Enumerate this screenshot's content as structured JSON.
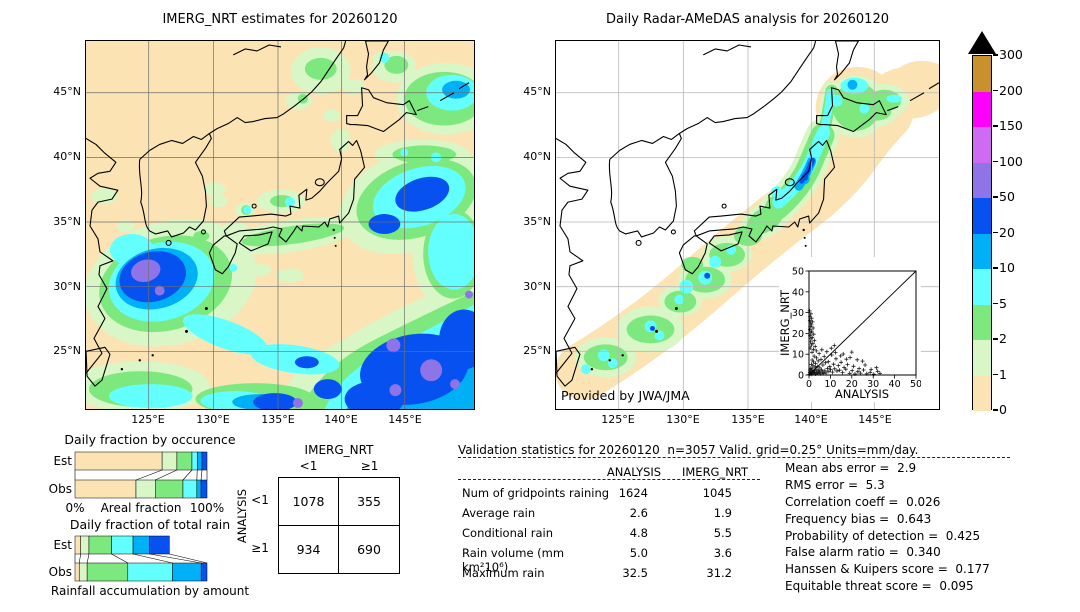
{
  "chart_data": {
    "type": "dashboard",
    "date": "20260120",
    "left_map": {
      "type": "map",
      "title": "IMERG_NRT estimates for 20260120",
      "x_ticks": [
        "125°E",
        "130°E",
        "135°E",
        "140°E",
        "145°E"
      ],
      "y_ticks": [
        "45°N",
        "40°N",
        "35°N",
        "30°N",
        "25°N"
      ],
      "lon_range": [
        120,
        150
      ],
      "lat_range": [
        20.5,
        49
      ]
    },
    "right_map": {
      "type": "map",
      "title": "Daily Radar-AMeDAS analysis for 20260120",
      "credit": "Provided by JWA/JMA",
      "x_ticks": [
        "125°E",
        "130°E",
        "135°E",
        "140°E",
        "145°E"
      ],
      "y_ticks": [
        "45°N",
        "40°N",
        "35°N",
        "30°N",
        "25°N"
      ],
      "lon_range": [
        120,
        150
      ],
      "lat_range": [
        20.5,
        49
      ]
    },
    "colorbar": {
      "units": "mm/day",
      "levels": [
        "0",
        "1",
        "2",
        "5",
        "10",
        "20",
        "50",
        "100",
        "150",
        "200",
        "300"
      ],
      "colors": [
        "#fbe3b4",
        "#d8f6c6",
        "#7de87d",
        "#63ffff",
        "#00b0f6",
        "#0751f0",
        "#8f74e8",
        "#cf6bf2",
        "#fb00fb",
        "#c8912d"
      ],
      "over_color": "#000000"
    },
    "occurrence_chart": {
      "type": "bar",
      "title": "Daily fraction by occurence",
      "rows": [
        "Est",
        "Obs"
      ],
      "x_left": "0%",
      "x_label": "Areal fraction",
      "x_right": "100%",
      "series": {
        "est": [
          [
            0,
            0.66
          ],
          [
            1,
            0.112
          ],
          [
            2,
            0.114
          ],
          [
            3,
            0.04
          ],
          [
            4,
            0.036
          ],
          [
            5,
            0.038
          ]
        ],
        "obs": [
          [
            0,
            0.462
          ],
          [
            1,
            0.146
          ],
          [
            2,
            0.21
          ],
          [
            3,
            0.105
          ],
          [
            4,
            0.032
          ],
          [
            5,
            0.045
          ]
        ]
      }
    },
    "totalrain_chart": {
      "type": "bar",
      "title": "Daily fraction of total rain",
      "rows": [
        "Est",
        "Obs"
      ],
      "x_label": "Rainfall accumulation by amount",
      "est_scale": 0.715,
      "obs_scale": 1.0,
      "series": {
        "est": [
          [
            0,
            0.06
          ],
          [
            1,
            0.088
          ],
          [
            2,
            0.239
          ],
          [
            3,
            0.228
          ],
          [
            4,
            0.175
          ],
          [
            5,
            0.21
          ]
        ],
        "obs": [
          [
            0,
            0.032
          ],
          [
            1,
            0.06
          ],
          [
            2,
            0.308
          ],
          [
            3,
            0.338
          ],
          [
            4,
            0.218
          ],
          [
            5,
            0.044
          ]
        ]
      }
    },
    "contingency": {
      "type": "table",
      "col_header": "IMERG_NRT",
      "row_header": "ANALYSIS",
      "col_labels": [
        "<1",
        "≥1"
      ],
      "row_labels": [
        "<1",
        "≥1"
      ],
      "values": [
        [
          "1078",
          "355"
        ],
        [
          "934",
          "690"
        ]
      ]
    },
    "validation": {
      "type": "table",
      "title": "Validation statistics for 20260120  n=3057 Valid. grid=0.25° Units=mm/day.",
      "columns": [
        "ANALYSIS",
        "IMERG_NRT"
      ],
      "rows": [
        {
          "label": "Num of gridpoints raining",
          "analysis": "1624",
          "imerg": "1045"
        },
        {
          "label": "Average rain",
          "analysis": "2.6",
          "imerg": "1.9"
        },
        {
          "label": "Conditional rain",
          "analysis": "4.8",
          "imerg": "5.5"
        },
        {
          "label": "Rain volume (mm km²10⁶)",
          "analysis": "5.0",
          "imerg": "3.6"
        },
        {
          "label": "Maximum rain",
          "analysis": "32.5",
          "imerg": "31.2"
        }
      ]
    },
    "stats": [
      {
        "label": "Mean abs error",
        "value": "2.9"
      },
      {
        "label": "RMS error",
        "value": "5.3"
      },
      {
        "label": "Correlation coeff",
        "value": "0.026"
      },
      {
        "label": "Frequency bias",
        "value": "0.643"
      },
      {
        "label": "Probability of detection",
        "value": "0.425"
      },
      {
        "label": "False alarm ratio",
        "value": "0.340"
      },
      {
        "label": "Hanssen & Kuipers score",
        "value": "0.177"
      },
      {
        "label": "Equitable threat score",
        "value": "0.095"
      }
    ],
    "inset_scatter": {
      "type": "scatter",
      "xlabel": "ANALYSIS",
      "ylabel": "IMERG_NRT",
      "xlim": [
        0,
        50
      ],
      "ylim": [
        0,
        50
      ],
      "ticks": [
        "0",
        "10",
        "20",
        "30",
        "40",
        "50"
      ],
      "points": [
        [
          0.2,
          0.3
        ],
        [
          0.4,
          1.1
        ],
        [
          0.5,
          2.4
        ],
        [
          0.7,
          0.6
        ],
        [
          0.8,
          3.2
        ],
        [
          1.0,
          1.8
        ],
        [
          1.1,
          5.1
        ],
        [
          1.3,
          0.4
        ],
        [
          1.4,
          2.9
        ],
        [
          1.5,
          7.2
        ],
        [
          1.7,
          1.2
        ],
        [
          1.8,
          4.4
        ],
        [
          2.0,
          0.8
        ],
        [
          2.1,
          6.3
        ],
        [
          2.3,
          2.2
        ],
        [
          2.4,
          9.1
        ],
        [
          2.6,
          1.5
        ],
        [
          2.8,
          3.8
        ],
        [
          3.0,
          0.5
        ],
        [
          3.1,
          5.6
        ],
        [
          3.3,
          2.7
        ],
        [
          3.5,
          8.2
        ],
        [
          3.7,
          1.1
        ],
        [
          3.9,
          4.1
        ],
        [
          4.1,
          0.9
        ],
        [
          4.3,
          6.8
        ],
        [
          4.5,
          2.1
        ],
        [
          4.7,
          10.3
        ],
        [
          4.9,
          1.6
        ],
        [
          5.1,
          3.4
        ],
        [
          5.3,
          0.6
        ],
        [
          5.6,
          7.5
        ],
        [
          5.8,
          2.5
        ],
        [
          6.0,
          12.1
        ],
        [
          6.3,
          1.3
        ],
        [
          6.5,
          4.8
        ],
        [
          6.8,
          0.7
        ],
        [
          7.1,
          8.9
        ],
        [
          7.4,
          2.0
        ],
        [
          7.7,
          5.9
        ],
        [
          8.0,
          1.0
        ],
        [
          8.3,
          11.2
        ],
        [
          8.6,
          3.1
        ],
        [
          9.0,
          6.4
        ],
        [
          9.3,
          1.8
        ],
        [
          9.7,
          4.0
        ],
        [
          10.1,
          2.6
        ],
        [
          10.6,
          9.6
        ],
        [
          11.0,
          1.4
        ],
        [
          11.5,
          5.2
        ],
        [
          12.0,
          3.0
        ],
        [
          12.6,
          7.8
        ],
        [
          13.1,
          1.9
        ],
        [
          13.7,
          4.5
        ],
        [
          14.3,
          2.3
        ],
        [
          15.0,
          6.1
        ],
        [
          15.7,
          1.2
        ],
        [
          16.4,
          3.6
        ],
        [
          17.2,
          2.8
        ],
        [
          18.0,
          5.0
        ],
        [
          0.3,
          30.8
        ],
        [
          0.9,
          29.4
        ],
        [
          0.5,
          28.1
        ],
        [
          1.2,
          27.3
        ],
        [
          0.4,
          26.2
        ],
        [
          1.6,
          25.6
        ],
        [
          0.8,
          24.9
        ],
        [
          1.1,
          24.1
        ],
        [
          0.6,
          23.2
        ],
        [
          1.9,
          22.6
        ],
        [
          0.4,
          21.8
        ],
        [
          1.3,
          21.1
        ],
        [
          0.9,
          20.3
        ],
        [
          2.2,
          19.6
        ],
        [
          0.5,
          18.9
        ],
        [
          1.5,
          18.1
        ],
        [
          1.0,
          17.4
        ],
        [
          2.5,
          16.6
        ],
        [
          0.7,
          15.9
        ],
        [
          1.8,
          15.2
        ],
        [
          1.2,
          14.4
        ],
        [
          2.9,
          13.7
        ],
        [
          0.6,
          13.0
        ],
        [
          2.1,
          12.3
        ],
        [
          3.4,
          11.6
        ],
        [
          1.4,
          10.9
        ],
        [
          19.0,
          0.8
        ],
        [
          20.2,
          2.1
        ],
        [
          21.5,
          0.5
        ],
        [
          22.8,
          1.6
        ],
        [
          24.1,
          0.9
        ],
        [
          25.5,
          2.4
        ],
        [
          27.0,
          0.6
        ],
        [
          28.6,
          1.2
        ],
        [
          30.3,
          0.4
        ],
        [
          32.1,
          1.8
        ],
        [
          33.2,
          0.7
        ],
        [
          20.8,
          4.2
        ],
        [
          23.4,
          3.1
        ],
        [
          26.2,
          4.8
        ],
        [
          29.0,
          2.7
        ],
        [
          31.5,
          3.5
        ],
        [
          12.4,
          10.8
        ],
        [
          14.8,
          9.2
        ],
        [
          17.5,
          7.6
        ],
        [
          20.0,
          11.0
        ],
        [
          22.5,
          7.3
        ],
        [
          25.0,
          6.7
        ],
        [
          16.0,
          10.1
        ],
        [
          19.2,
          8.4
        ],
        [
          10.4,
          12.9
        ],
        [
          11.8,
          14.2
        ]
      ]
    }
  }
}
